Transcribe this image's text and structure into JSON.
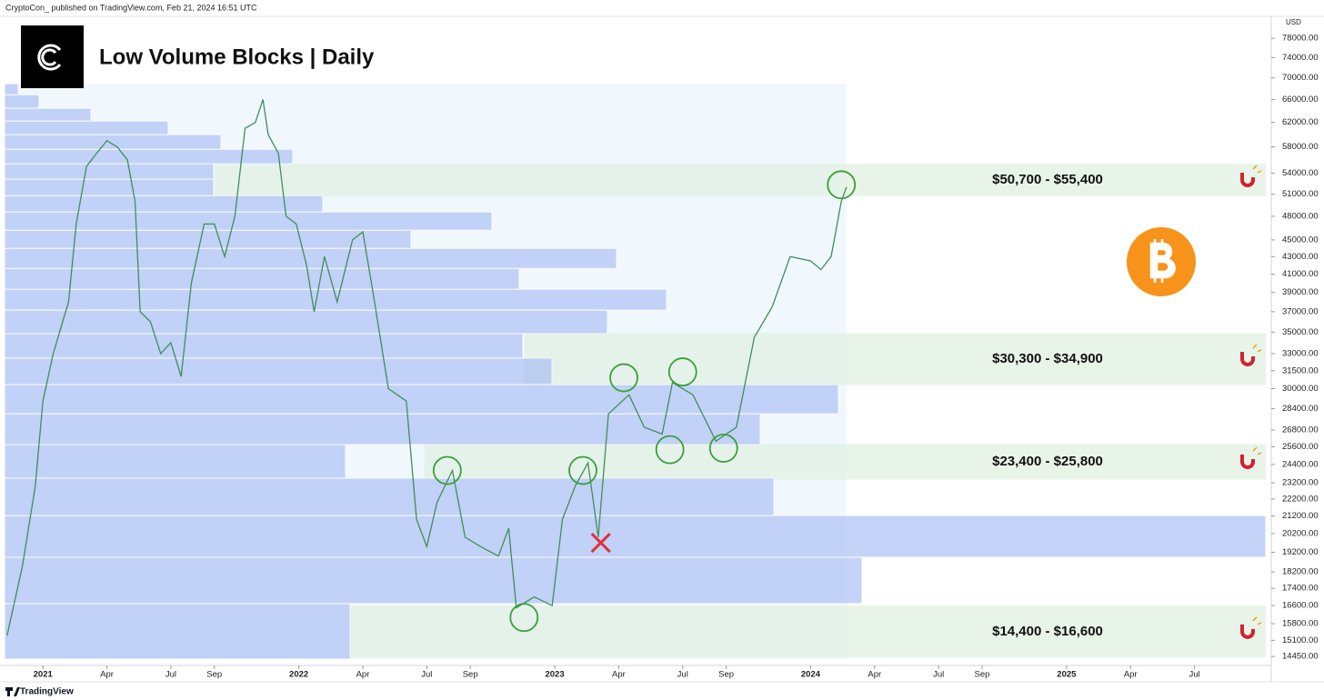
{
  "header": {
    "byline": "CryptoCon_ published on TradingView.com, Feb 21, 2024 16:51 UTC"
  },
  "footer": {
    "brand": "TradingView"
  },
  "chart_data": {
    "type": "line",
    "title": "Low Volume Blocks | Daily",
    "ylabel": "USD",
    "log_scale": true,
    "color": "#3f8f5a",
    "xlim": [
      2020.85,
      2025.8
    ],
    "ylim": [
      14100,
      82800
    ],
    "x": [
      2020.86,
      2020.92,
      2020.97,
      2021.0,
      2021.04,
      2021.1,
      2021.13,
      2021.17,
      2021.21,
      2021.25,
      2021.29,
      2021.33,
      2021.36,
      2021.38,
      2021.42,
      2021.46,
      2021.5,
      2021.54,
      2021.58,
      2021.63,
      2021.67,
      2021.71,
      2021.75,
      2021.79,
      2021.83,
      2021.86,
      2021.88,
      2021.92,
      2021.95,
      2021.99,
      2022.03,
      2022.06,
      2022.1,
      2022.15,
      2022.21,
      2022.25,
      2022.29,
      2022.35,
      2022.42,
      2022.46,
      2022.5,
      2022.54,
      2022.6,
      2022.65,
      2022.71,
      2022.78,
      2022.82,
      2022.85,
      2022.92,
      2022.99,
      2023.03,
      2023.08,
      2023.13,
      2023.17,
      2023.21,
      2023.29,
      2023.35,
      2023.42,
      2023.46,
      2023.54,
      2023.63,
      2023.71,
      2023.78,
      2023.85,
      2023.92,
      2024.0,
      2024.04,
      2024.08,
      2024.12,
      2024.14
    ],
    "values": [
      15300,
      18500,
      23000,
      29000,
      33000,
      38000,
      47000,
      55000,
      57000,
      59000,
      58000,
      56000,
      50000,
      37000,
      36000,
      33000,
      34000,
      31000,
      40000,
      47000,
      47000,
      43000,
      48000,
      61000,
      62000,
      66000,
      60000,
      57000,
      48000,
      47000,
      42000,
      37000,
      43000,
      38000,
      45000,
      46000,
      39000,
      30000,
      29000,
      21000,
      19500,
      22000,
      24000,
      20000,
      19500,
      19000,
      20500,
      16500,
      17000,
      16600,
      21000,
      23000,
      24500,
      20000,
      28000,
      29500,
      27000,
      26500,
      30500,
      29500,
      26000,
      27000,
      34500,
      37500,
      43000,
      42500,
      41500,
      43000,
      50000,
      52000
    ],
    "volume_profile": {
      "color": "#a9bdf5",
      "edges": [
        14350,
        16690,
        18940,
        21220,
        23500,
        25750,
        28010,
        30330,
        32600,
        34850,
        37160,
        39340,
        41640,
        43980,
        46210,
        48570,
        50780,
        53110,
        55390,
        57630,
        59970,
        62230,
        64440,
        66870,
        68900
      ],
      "volumes": [
        380,
        943,
        1387,
        846,
        375,
        831,
        917,
        602,
        570,
        663,
        728,
        566,
        673,
        447,
        536,
        350,
        230,
        230,
        317,
        238,
        180,
        95,
        38,
        15
      ]
    },
    "zones": [
      {
        "low": 50700,
        "high": 55400,
        "start": 2021.67,
        "label": "$50,700 - $55,400"
      },
      {
        "low": 30300,
        "high": 34900,
        "start": 2022.88,
        "label": "$30,300 - $34,900"
      },
      {
        "low": 23400,
        "high": 25800,
        "start": 2022.49,
        "label": "$23,400 - $25,800"
      },
      {
        "low": 14400,
        "high": 16600,
        "start": 2022.2,
        "label": "$14,400 - $16,600"
      }
    ],
    "circles": [
      {
        "x": 2022.58,
        "y": 24000
      },
      {
        "x": 2022.88,
        "y": 16070
      },
      {
        "x": 2023.11,
        "y": 24000
      },
      {
        "x": 2023.27,
        "y": 30900
      },
      {
        "x": 2023.45,
        "y": 25400
      },
      {
        "x": 2023.5,
        "y": 31400
      },
      {
        "x": 2023.66,
        "y": 25500
      },
      {
        "x": 2024.12,
        "y": 52300
      }
    ],
    "cross": {
      "x": 2023.18,
      "y": 19700
    },
    "yticks": [
      {
        "value": 78000,
        "label": "78000.00"
      },
      {
        "value": 74000,
        "label": "74000.00"
      },
      {
        "value": 70000,
        "label": "70000.00"
      },
      {
        "value": 66000,
        "label": "66000.00"
      },
      {
        "value": 62000,
        "label": "62000.00"
      },
      {
        "value": 58000,
        "label": "58000.00"
      },
      {
        "value": 54000,
        "label": "54000.00"
      },
      {
        "value": 51000,
        "label": "51000.00"
      },
      {
        "value": 48000,
        "label": "48000.00"
      },
      {
        "value": 45000,
        "label": "45000.00"
      },
      {
        "value": 43000,
        "label": "43000.00"
      },
      {
        "value": 41000,
        "label": "41000.00"
      },
      {
        "value": 39000,
        "label": "39000.00"
      },
      {
        "value": 37000,
        "label": "37000.00"
      },
      {
        "value": 35000,
        "label": "35000.00"
      },
      {
        "value": 33000,
        "label": "33000.00"
      },
      {
        "value": 31500,
        "label": "31500.00"
      },
      {
        "value": 30000,
        "label": "30000.00"
      },
      {
        "value": 28400,
        "label": "28400.00"
      },
      {
        "value": 26800,
        "label": "26800.00"
      },
      {
        "value": 25600,
        "label": "25600.00"
      },
      {
        "value": 24400,
        "label": "24400.00"
      },
      {
        "value": 23200,
        "label": "23200.00"
      },
      {
        "value": 22200,
        "label": "22200.00"
      },
      {
        "value": 21200,
        "label": "21200.00"
      },
      {
        "value": 20200,
        "label": "20200.00"
      },
      {
        "value": 19200,
        "label": "19200.00"
      },
      {
        "value": 18200,
        "label": "18200.00"
      },
      {
        "value": 17400,
        "label": "17400.00"
      },
      {
        "value": 16600,
        "label": "16600.00"
      },
      {
        "value": 15800,
        "label": "15800.00"
      },
      {
        "value": 15100,
        "label": "15100.00"
      },
      {
        "value": 14450,
        "label": "14450.00"
      }
    ],
    "xticks": [
      {
        "value": 2021,
        "label": "2021"
      },
      {
        "value": 2021.25,
        "label": "Apr"
      },
      {
        "value": 2021.5,
        "label": "Jul"
      },
      {
        "value": 2021.67,
        "label": "Sep"
      },
      {
        "value": 2022,
        "label": "2022"
      },
      {
        "value": 2022.25,
        "label": "Apr"
      },
      {
        "value": 2022.5,
        "label": "Jul"
      },
      {
        "value": 2022.67,
        "label": "Sep"
      },
      {
        "value": 2023,
        "label": "2023"
      },
      {
        "value": 2023.25,
        "label": "Apr"
      },
      {
        "value": 2023.5,
        "label": "Jul"
      },
      {
        "value": 2023.67,
        "label": "Sep"
      },
      {
        "value": 2024,
        "label": "2024"
      },
      {
        "value": 2024.25,
        "label": "Apr"
      },
      {
        "value": 2024.5,
        "label": "Jul"
      },
      {
        "value": 2024.67,
        "label": "Sep"
      },
      {
        "value": 2025,
        "label": "2025"
      },
      {
        "value": 2025.25,
        "label": "Apr"
      },
      {
        "value": 2025.5,
        "label": "Jul"
      }
    ]
  }
}
